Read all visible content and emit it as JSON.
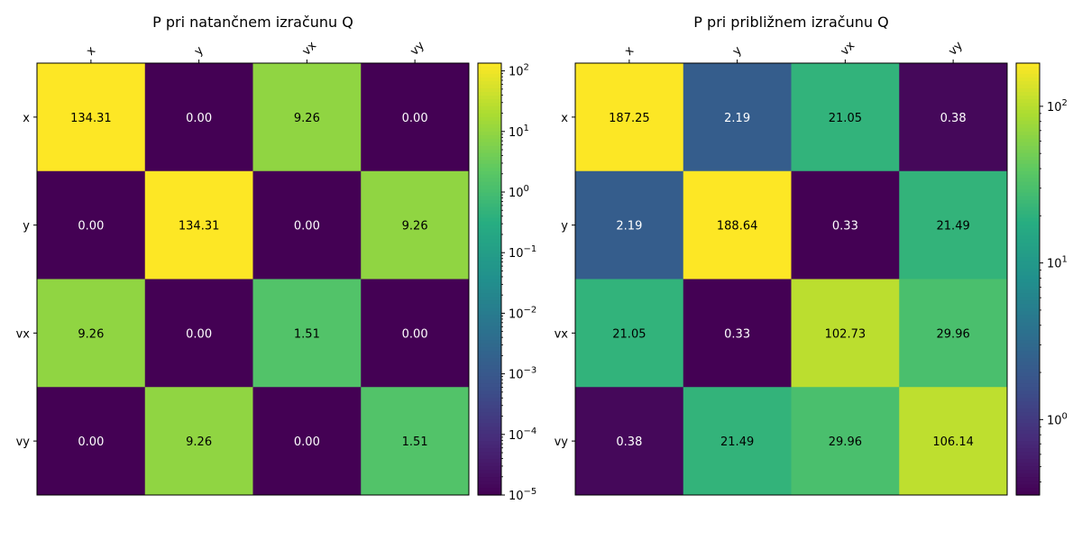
{
  "chart_data": [
    {
      "type": "heatmap",
      "title": "P pri natančnem izračunu Q",
      "x_labels": [
        "x",
        "y",
        "vx",
        "vy"
      ],
      "y_labels": [
        "x",
        "y",
        "vx",
        "vy"
      ],
      "values": [
        [
          134.31,
          0.0,
          9.26,
          0.0
        ],
        [
          0.0,
          134.31,
          0.0,
          9.26
        ],
        [
          9.26,
          0.0,
          1.51,
          0.0
        ],
        [
          0.0,
          9.26,
          0.0,
          1.51
        ]
      ],
      "cell_labels": [
        [
          "134.31",
          "0.00",
          "9.26",
          "0.00"
        ],
        [
          "0.00",
          "134.31",
          "0.00",
          "9.26"
        ],
        [
          "9.26",
          "0.00",
          "1.51",
          "0.00"
        ],
        [
          "0.00",
          "9.26",
          "0.00",
          "1.51"
        ]
      ],
      "color_scale": "log",
      "colormap": "viridis",
      "colorbar_range": [
        1e-05,
        134.31
      ],
      "colorbar_ticks": [
        {
          "value": 1e-05,
          "base": "10",
          "exp": "−5"
        },
        {
          "value": 0.0001,
          "base": "10",
          "exp": "−4"
        },
        {
          "value": 0.001,
          "base": "10",
          "exp": "−3"
        },
        {
          "value": 0.01,
          "base": "10",
          "exp": "−2"
        },
        {
          "value": 0.1,
          "base": "10",
          "exp": "−1"
        },
        {
          "value": 1,
          "base": "10",
          "exp": "0"
        },
        {
          "value": 10,
          "base": "10",
          "exp": "1"
        },
        {
          "value": 100,
          "base": "10",
          "exp": "2"
        }
      ]
    },
    {
      "type": "heatmap",
      "title": "P pri približnem izračunu Q",
      "x_labels": [
        "x",
        "y",
        "vx",
        "vy"
      ],
      "y_labels": [
        "x",
        "y",
        "vx",
        "vy"
      ],
      "values": [
        [
          187.25,
          2.19,
          21.05,
          0.38
        ],
        [
          2.19,
          188.64,
          0.33,
          21.49
        ],
        [
          21.05,
          0.33,
          102.73,
          29.96
        ],
        [
          0.38,
          21.49,
          29.96,
          106.14
        ]
      ],
      "cell_labels": [
        [
          "187.25",
          "2.19",
          "21.05",
          "0.38"
        ],
        [
          "2.19",
          "188.64",
          "0.33",
          "21.49"
        ],
        [
          "21.05",
          "0.33",
          "102.73",
          "29.96"
        ],
        [
          "0.38",
          "21.49",
          "29.96",
          "106.14"
        ]
      ],
      "color_scale": "log",
      "colormap": "viridis",
      "colorbar_range": [
        0.33,
        188.64
      ],
      "colorbar_ticks": [
        {
          "value": 1,
          "base": "10",
          "exp": "0"
        },
        {
          "value": 10,
          "base": "10",
          "exp": "1"
        },
        {
          "value": 100,
          "base": "10",
          "exp": "2"
        }
      ]
    }
  ]
}
